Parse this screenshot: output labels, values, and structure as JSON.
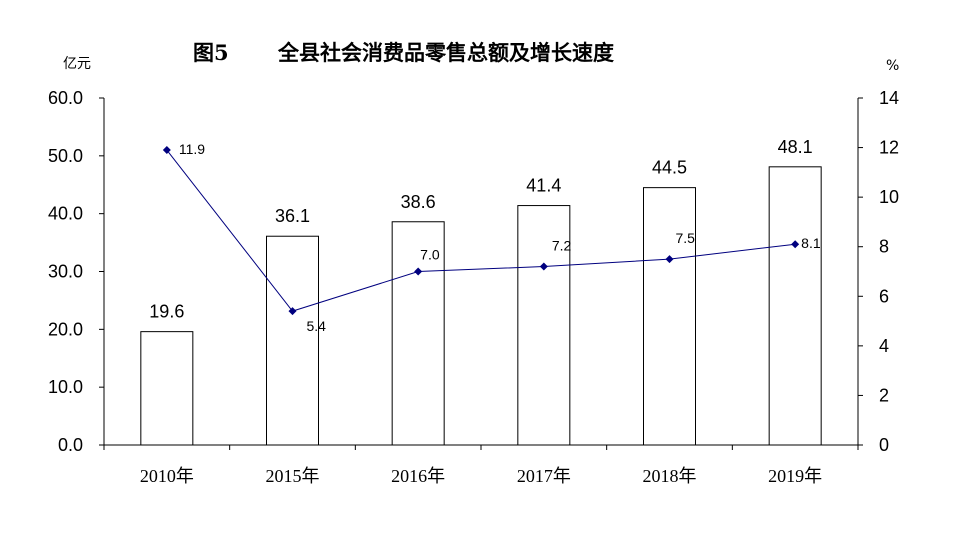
{
  "chart_data": {
    "type": "bar",
    "title_prefix": "图5",
    "title": "全县社会消费品零售总额及增长速度",
    "ylabel_left": "亿元",
    "ylabel_right": "%",
    "categories": [
      "2010年",
      "2015年",
      "2016年",
      "2017年",
      "2018年",
      "2019年"
    ],
    "series": [
      {
        "type": "bar",
        "axis": "left",
        "values": [
          19.6,
          36.1,
          38.6,
          41.4,
          44.5,
          48.1
        ],
        "labels": [
          "19.6",
          "36.1",
          "38.6",
          "41.4",
          "44.5",
          "48.1"
        ],
        "color": "#ffffff",
        "stroke": "#000000"
      },
      {
        "type": "line",
        "axis": "right",
        "values": [
          11.9,
          5.4,
          7.0,
          7.2,
          7.5,
          8.1
        ],
        "labels": [
          "11.9",
          "5.4",
          "7.0",
          "7.2",
          "7.5",
          "8.1"
        ],
        "color": "#00007f"
      }
    ],
    "y_left": {
      "min": 0,
      "max": 60,
      "ticks": [
        "0.0",
        "10.0",
        "20.0",
        "30.0",
        "40.0",
        "50.0",
        "60.0"
      ]
    },
    "y_right": {
      "min": 0,
      "max": 14,
      "ticks": [
        "0",
        "2",
        "4",
        "6",
        "8",
        "10",
        "12",
        "14"
      ]
    },
    "grid": false,
    "legend": "none"
  }
}
